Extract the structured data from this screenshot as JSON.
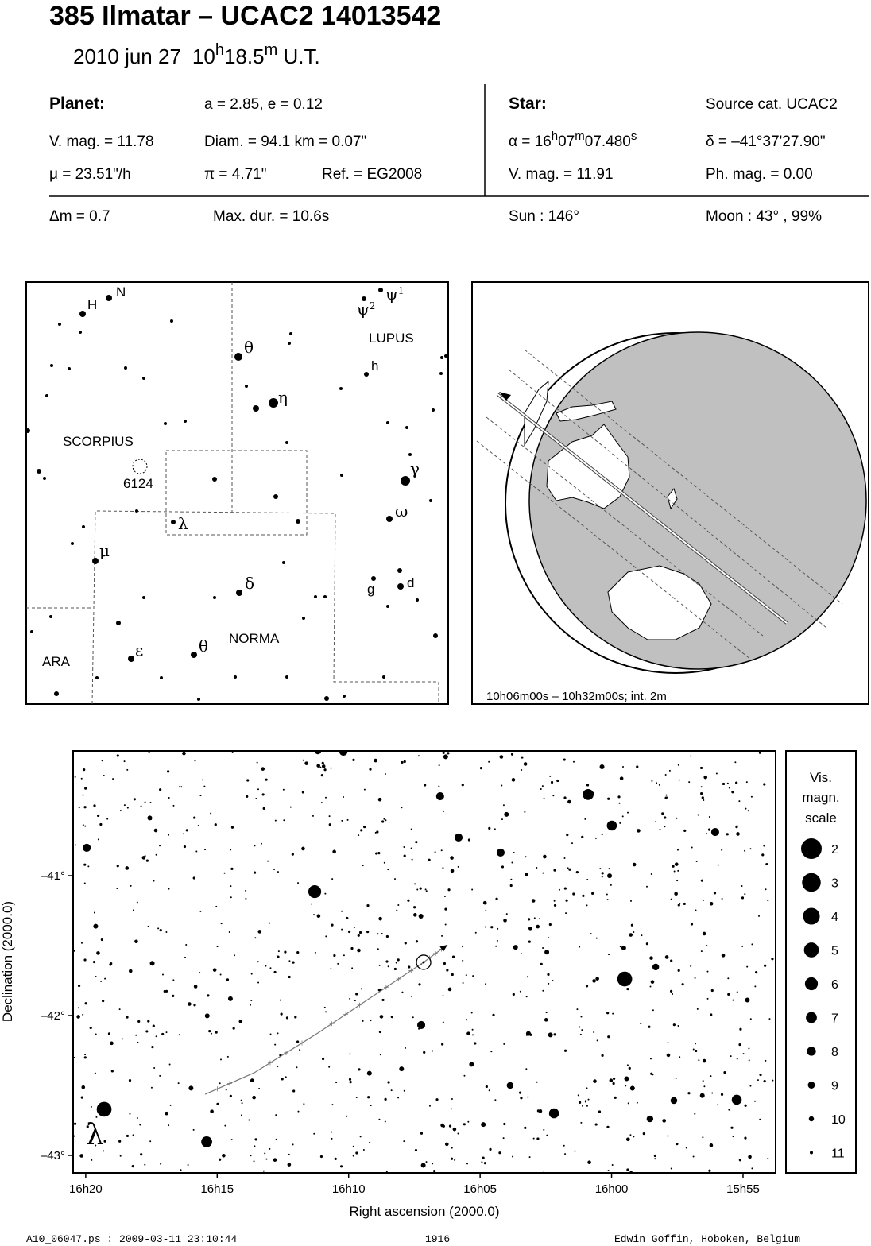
{
  "header": {
    "title": "385 Ilmatar  –  UCAC2 14013542",
    "date": "2010 jun 27",
    "time": [
      "10",
      "h",
      "18.5",
      "m",
      " U.T."
    ]
  },
  "info": {
    "planet_label": "Planet:",
    "orbit": "a = 2.85, e = 0.12",
    "vmag": "V. mag. = 11.78",
    "diam": "Diam. = 94.1 km = 0.07\"",
    "mu": "μ =  23.51\"/h",
    "pi": "π =  4.71\"",
    "ref": "Ref. = EG2008",
    "star_label": "Star:",
    "source": "Source cat.  UCAC2",
    "alpha": [
      "α = 16",
      "h",
      "07",
      "m",
      "07.480",
      "s"
    ],
    "delta": "δ = –41°37'27.90\"",
    "star_vmag": "V. mag. = 11.91",
    "phmag": "Ph. mag. =  0.00",
    "dm": "Δm = 0.7",
    "maxdur": "Max. dur. = 10.6s",
    "sun": "Sun : 146°",
    "moon": "Moon :  43° , 99%"
  },
  "finder": {
    "labels": [
      "H",
      "N",
      "ψ",
      "1",
      "ψ",
      "2",
      "LUPUS",
      "θ",
      "h",
      "η",
      "SCORPIUS",
      "6124",
      "γ",
      "λ",
      "ω",
      "μ",
      "δ",
      "g",
      "d",
      "ε",
      "θ",
      "NORMA",
      "ARA"
    ]
  },
  "globe": {
    "caption": "10h06m00s – 10h32m00s; int.  2m"
  },
  "star_chart": {
    "xlabel": "Right ascension (2000.0)",
    "ylabel": "Declination (2000.0)",
    "xlim": [
      980.48,
      953.76
    ],
    "ylim": [
      -43.125,
      -40.108
    ],
    "xticks": [
      {
        "value": 980,
        "label": "16h20"
      },
      {
        "value": 975,
        "label": "16h15"
      },
      {
        "value": 970,
        "label": "16h10"
      },
      {
        "value": 965,
        "label": "16h05"
      },
      {
        "value": 960,
        "label": "16h00"
      },
      {
        "value": 955,
        "label": "15h55"
      }
    ],
    "yticks": [
      {
        "value": -41,
        "label": "–41°"
      },
      {
        "value": -42,
        "label": "–42°"
      },
      {
        "value": -43,
        "label": "–43°"
      }
    ],
    "path": {
      "x": [
        975.46,
        973.59,
        971.17,
        969.05,
        967.15,
        966.24
      ],
      "y": [
        -42.563,
        -42.409,
        -42.125,
        -41.858,
        -41.619,
        -41.494
      ]
    },
    "target": {
      "x": 967.15,
      "y": -41.619
    },
    "stars": {
      "x": [
        979.3,
        975.4,
        971.29,
        959.5,
        960.89,
        959.99,
        955.24,
        962.19,
        967.24,
        966.52,
        964.22,
        965.82,
        979.96,
        970.2,
        971.17,
        956.06,
        958.32,
        957.63,
        958.54,
        963.86
      ],
      "y": [
        -42.67,
        -42.903,
        -41.114,
        -41.739,
        -40.42,
        -40.642,
        -42.602,
        -42.699,
        -42.068,
        -40.432,
        -40.835,
        -40.727,
        -40.801,
        -40.114,
        -40.108,
        -40.688,
        -41.653,
        -42.608,
        -42.739,
        -42.5
      ],
      "mag": [
        5,
        7,
        6,
        5,
        7,
        7.5,
        7.5,
        7.5,
        8.5,
        8.5,
        8.5,
        8.5,
        8.5,
        8.5,
        9.2,
        8.5,
        9.2,
        9.2,
        9.2,
        9.2
      ]
    },
    "star_label": "λ",
    "legend": {
      "title": [
        "Vis.",
        "magn.",
        "scale"
      ],
      "mags": [
        2,
        3,
        4,
        5,
        6,
        7,
        8,
        9,
        10,
        11
      ]
    }
  },
  "footer": {
    "file": "A10_06047.ps : 2009-03-11 23:10:44",
    "number": "1916",
    "author": "Edwin Goffin, Hoboken, Belgium"
  }
}
